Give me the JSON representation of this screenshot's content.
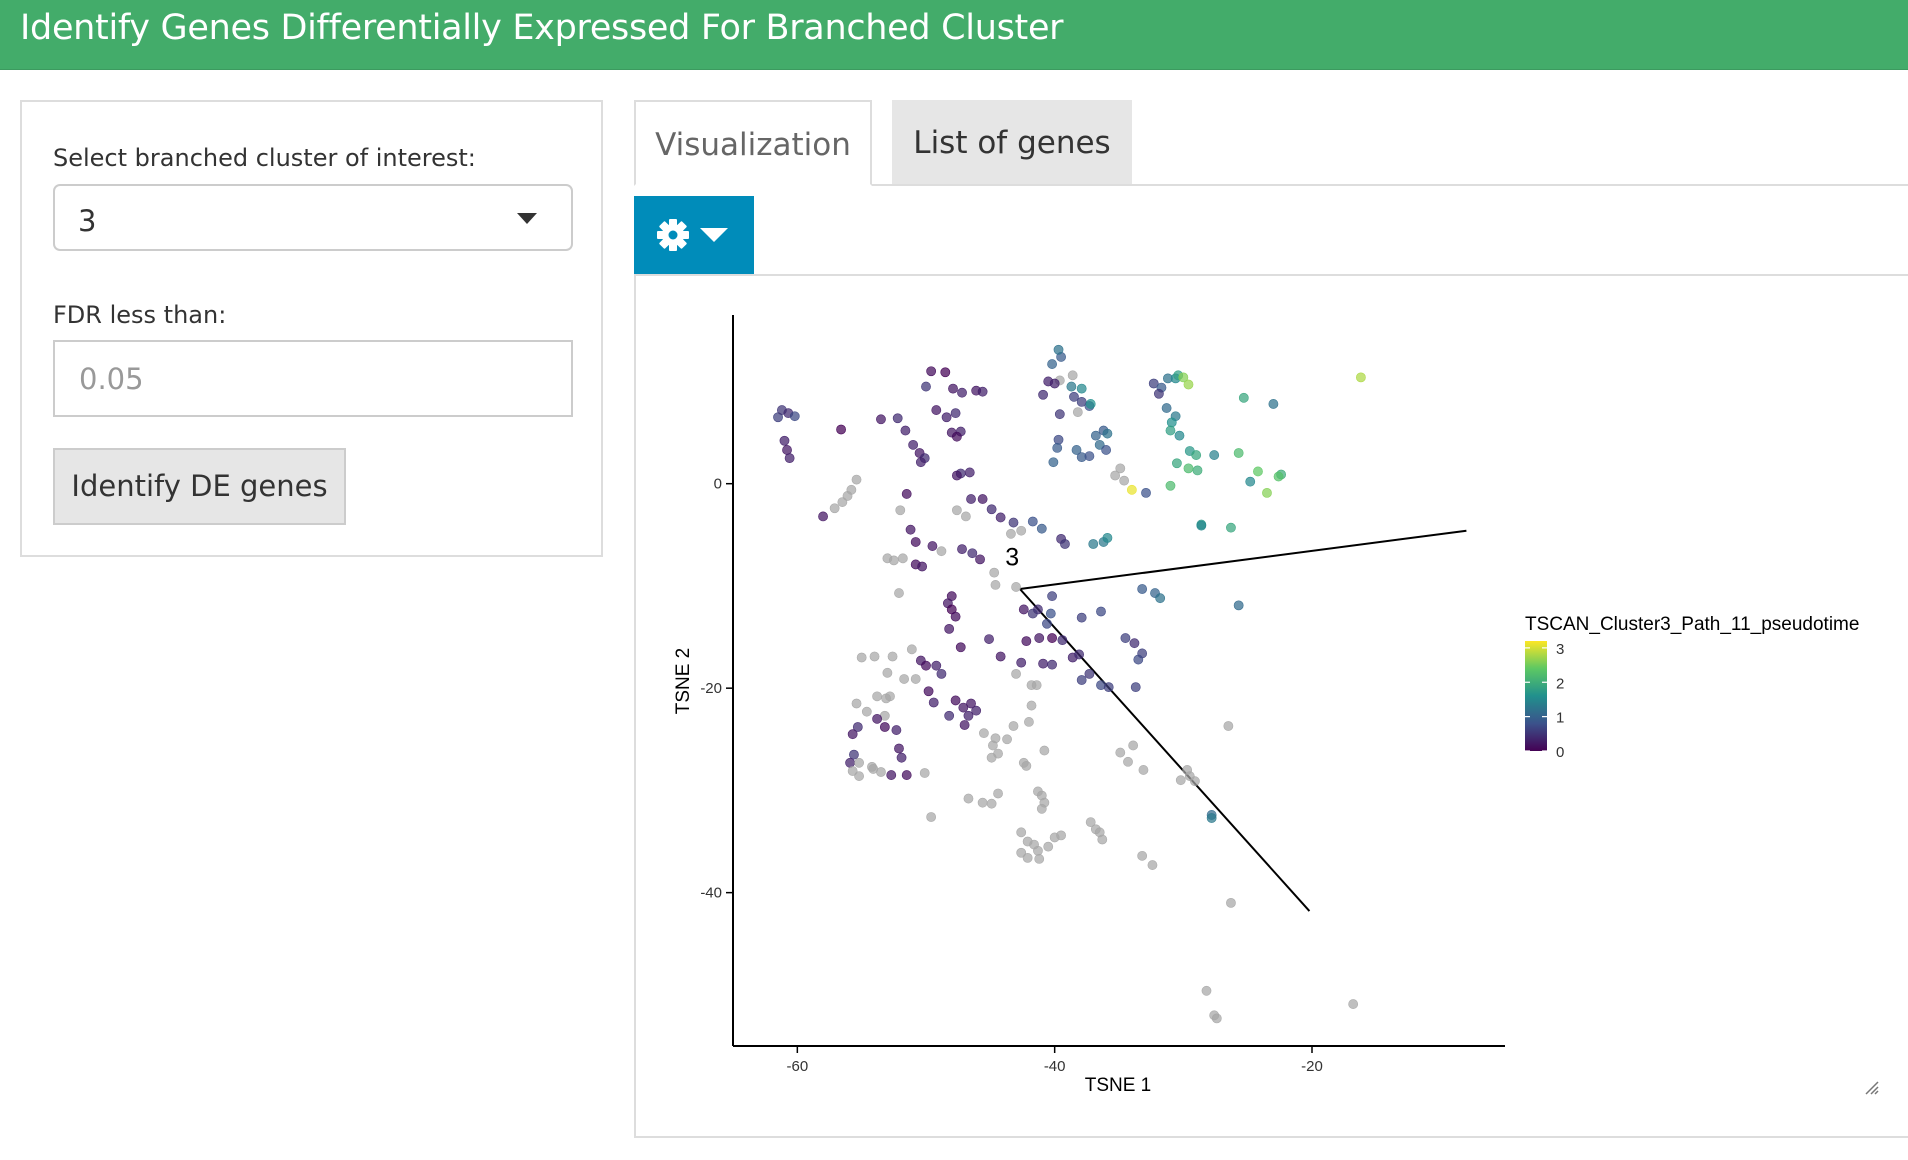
{
  "header": {
    "title": "Identify Genes Differentially Expressed For Branched Cluster"
  },
  "sidebar": {
    "cluster_label": "Select branched cluster of interest:",
    "cluster_value": "3",
    "fdr_label": "FDR less than:",
    "fdr_placeholder": "0.05",
    "button_label": "Identify DE genes"
  },
  "tabs": [
    {
      "label": "Visualization",
      "active": true
    },
    {
      "label": "List of genes",
      "active": false
    }
  ],
  "toolbar": {
    "icon": "gear-icon",
    "caret": "caret-down-icon",
    "color": "#008cba"
  },
  "colors": {
    "header": "#43ac6a",
    "accent": "#008cba",
    "na_points": "#a6a6a6"
  },
  "chart_data": {
    "type": "scatter",
    "title": "",
    "xlabel": "TSNE 1",
    "ylabel": "TSNE 2",
    "xlim": [
      -65,
      -5
    ],
    "ylim": [
      -55,
      16.5
    ],
    "xticks": [
      -60,
      -40,
      -20
    ],
    "yticks": [
      0,
      -20,
      -40
    ],
    "grid": false,
    "legend": {
      "title": "TSCAN_Cluster3_Path_11_pseudotime",
      "placement": "right",
      "ticks": [
        3,
        2,
        1,
        0
      ],
      "range": [
        0,
        3.2
      ],
      "colormap": "viridis"
    },
    "cluster_label": {
      "text": "3",
      "x": -43.3,
      "y": -8
    },
    "trajectory": [
      {
        "x": -20.2,
        "y": -41.8
      },
      {
        "x": -42.7,
        "y": -10.3
      },
      {
        "x": -8,
        "y": -4.6
      }
    ],
    "points": [
      [
        -61.5,
        6.5,
        0.6
      ],
      [
        -61.2,
        7.2,
        0.5
      ],
      [
        -60.7,
        6.9,
        0.4
      ],
      [
        -60.2,
        6.6,
        0.7
      ],
      [
        -61.0,
        4.2,
        0.3
      ],
      [
        -60.8,
        3.3,
        0.2
      ],
      [
        -60.6,
        2.5,
        0.3
      ],
      [
        -56.6,
        5.3,
        0.0
      ],
      [
        -53.5,
        6.3,
        0.2
      ],
      [
        -52.2,
        6.4,
        0.4
      ],
      [
        -51.6,
        5.2,
        0.3
      ],
      [
        -49.6,
        11.0,
        0.1
      ],
      [
        -48.5,
        10.9,
        0.0
      ],
      [
        -47.9,
        9.3,
        0.2
      ],
      [
        -47.2,
        8.9,
        0.3
      ],
      [
        -46.1,
        9.1,
        0.2
      ],
      [
        -45.6,
        9.0,
        0.3
      ],
      [
        -50.0,
        9.5,
        0.5
      ],
      [
        -49.2,
        7.2,
        0.2
      ],
      [
        -48.4,
        6.5,
        0.3
      ],
      [
        -47.7,
        6.9,
        0.4
      ],
      [
        -48.0,
        5.0,
        0.2
      ],
      [
        -47.3,
        5.1,
        0.3
      ],
      [
        -47.6,
        4.6,
        0.1
      ],
      [
        -51.0,
        3.8,
        0.3
      ],
      [
        -50.5,
        3.0,
        0.2
      ],
      [
        -50.1,
        2.5,
        0.4
      ],
      [
        -50.4,
        2.1,
        0.3
      ],
      [
        -47.3,
        1.0,
        0.4
      ],
      [
        -46.6,
        1.1,
        0.3
      ],
      [
        -47.6,
        0.8,
        0.2
      ],
      [
        -55.4,
        0.4,
        null
      ],
      [
        -55.8,
        -0.6,
        null
      ],
      [
        -56.1,
        -1.2,
        null
      ],
      [
        -56.5,
        -1.8,
        null
      ],
      [
        -57.1,
        -2.4,
        null
      ],
      [
        -58.0,
        -3.2,
        0.2
      ],
      [
        -51.5,
        -1.0,
        0.1
      ],
      [
        -52.0,
        -2.6,
        null
      ],
      [
        -51.2,
        -4.5,
        0.2
      ],
      [
        -46.5,
        -1.5,
        0.3
      ],
      [
        -45.6,
        -1.5,
        0.2
      ],
      [
        -44.9,
        -2.5,
        0.4
      ],
      [
        -44.2,
        -3.3,
        0.3
      ],
      [
        -43.2,
        -3.8,
        0.5
      ],
      [
        -41.7,
        -3.7,
        0.8
      ],
      [
        -41.0,
        -4.4,
        0.9
      ],
      [
        -42.6,
        -4.6,
        null
      ],
      [
        -43.4,
        -4.9,
        null
      ],
      [
        -46.9,
        -3.2,
        null
      ],
      [
        -47.6,
        -2.6,
        null
      ],
      [
        -50.8,
        -5.7,
        0.1
      ],
      [
        -49.5,
        -6.1,
        0.2
      ],
      [
        -48.8,
        -6.6,
        null
      ],
      [
        -47.2,
        -6.4,
        0.3
      ],
      [
        -46.4,
        -6.8,
        0.4
      ],
      [
        -45.8,
        -7.4,
        0.2
      ],
      [
        -50.8,
        -7.9,
        0.1
      ],
      [
        -51.8,
        -7.3,
        null
      ],
      [
        -53.0,
        -7.3,
        null
      ],
      [
        -52.5,
        -7.5,
        null
      ],
      [
        -50.3,
        -8.1,
        0.2
      ],
      [
        -52.1,
        -10.7,
        null
      ],
      [
        -38.6,
        10.6,
        null
      ],
      [
        -39.6,
        10.1,
        null
      ],
      [
        -40.0,
        9.8,
        0.3
      ],
      [
        -40.5,
        10.0,
        0.3
      ],
      [
        -40.9,
        8.7,
        0.4
      ],
      [
        -38.5,
        8.5,
        0.6
      ],
      [
        -37.9,
        8.0,
        0.6
      ],
      [
        -37.3,
        7.6,
        0.8
      ],
      [
        -38.2,
        7.0,
        null
      ],
      [
        -39.6,
        6.8,
        0.5
      ],
      [
        -39.7,
        4.3,
        0.7
      ],
      [
        -39.8,
        3.5,
        0.9
      ],
      [
        -40.1,
        2.1,
        1.0
      ],
      [
        -38.3,
        3.3,
        1.0
      ],
      [
        -37.9,
        2.6,
        0.9
      ],
      [
        -37.3,
        2.7,
        0.8
      ],
      [
        -36.8,
        4.7,
        1.0
      ],
      [
        -36.5,
        3.8,
        1.1
      ],
      [
        -36.0,
        3.3,
        0.8
      ],
      [
        -36.2,
        5.2,
        0.9
      ],
      [
        -35.9,
        4.9,
        1.2
      ],
      [
        -37.0,
        -5.9,
        1.3
      ],
      [
        -36.2,
        -5.7,
        1.3
      ],
      [
        -35.9,
        -5.3,
        1.5
      ],
      [
        -39.5,
        -5.4,
        0.4
      ],
      [
        -39.2,
        -5.9,
        0.5
      ],
      [
        -40.2,
        -11.0,
        0.6
      ],
      [
        -41.3,
        -12.3,
        0.4
      ],
      [
        -40.3,
        -12.7,
        0.8
      ],
      [
        -40.6,
        -13.7,
        0.7
      ],
      [
        -41.7,
        -12.7,
        0.5
      ],
      [
        -39.5,
        12.4,
        0.9
      ],
      [
        -39.7,
        13.1,
        1.2
      ],
      [
        -40.2,
        11.7,
        1.0
      ],
      [
        -38.7,
        9.5,
        1.3
      ],
      [
        -37.9,
        9.3,
        1.5
      ],
      [
        -37.2,
        7.8,
        1.6
      ],
      [
        -34.9,
        1.5,
        null
      ],
      [
        -35.3,
        0.8,
        null
      ],
      [
        -34.6,
        0.3,
        null
      ],
      [
        -34.0,
        -0.6,
        3.1
      ],
      [
        -32.9,
        -0.9,
        0.8
      ],
      [
        -31.0,
        -0.2,
        2.2
      ],
      [
        -32.3,
        9.8,
        0.6
      ],
      [
        -31.7,
        9.4,
        0.9
      ],
      [
        -31.2,
        10.3,
        1.2
      ],
      [
        -30.6,
        10.3,
        1.5
      ],
      [
        -30.4,
        10.6,
        1.8
      ],
      [
        -30.0,
        10.4,
        2.6
      ],
      [
        -29.6,
        9.7,
        2.7
      ],
      [
        -31.9,
        8.8,
        0.5
      ],
      [
        -31.3,
        7.4,
        1.1
      ],
      [
        -30.6,
        6.6,
        1.3
      ],
      [
        -30.9,
        6.0,
        1.6
      ],
      [
        -31.0,
        5.2,
        1.8
      ],
      [
        -30.3,
        4.7,
        1.5
      ],
      [
        -29.5,
        3.2,
        1.7
      ],
      [
        -29.0,
        2.8,
        1.9
      ],
      [
        -28.9,
        1.3,
        2.0
      ],
      [
        -29.6,
        1.5,
        2.2
      ],
      [
        -30.5,
        2.0,
        1.9
      ],
      [
        -28.6,
        -4.0,
        1.7
      ],
      [
        -27.6,
        2.8,
        1.4
      ],
      [
        -25.7,
        3.0,
        2.2
      ],
      [
        -24.8,
        0.2,
        1.5
      ],
      [
        -24.2,
        1.2,
        2.4
      ],
      [
        -22.4,
        0.9,
        2.0
      ],
      [
        -22.6,
        0.7,
        2.3
      ],
      [
        -23.5,
        -0.9,
        2.6
      ],
      [
        -25.3,
        8.4,
        1.9
      ],
      [
        -23.0,
        7.8,
        1.2
      ],
      [
        -16.2,
        10.4,
        2.8
      ],
      [
        -26.3,
        -4.3,
        1.9
      ],
      [
        -28.6,
        -4.1,
        1.5
      ],
      [
        -32.2,
        -10.7,
        1.0
      ],
      [
        -31.8,
        -11.2,
        1.2
      ],
      [
        -33.2,
        -10.3,
        0.9
      ],
      [
        -34.5,
        -15.1,
        0.6
      ],
      [
        -33.8,
        -15.6,
        0.4
      ],
      [
        -33.2,
        -16.6,
        0.6
      ],
      [
        -33.5,
        -17.2,
        0.7
      ],
      [
        -36.4,
        -12.5,
        0.7
      ],
      [
        -37.9,
        -13.1,
        0.6
      ],
      [
        -25.7,
        -11.9,
        1.1
      ],
      [
        -48.0,
        -11.0,
        0.1
      ],
      [
        -48.3,
        -11.7,
        0.2
      ],
      [
        -48.0,
        -12.3,
        0.0
      ],
      [
        -47.7,
        -13.0,
        0.1
      ],
      [
        -48.2,
        -14.2,
        0.2
      ],
      [
        -47.3,
        -16.0,
        0.1
      ],
      [
        -45.1,
        -15.2,
        0.3
      ],
      [
        -42.2,
        -15.4,
        0.1
      ],
      [
        -41.2,
        -15.1,
        0.2
      ],
      [
        -40.2,
        -15.1,
        0.0
      ],
      [
        -39.4,
        -15.3,
        0.4
      ],
      [
        -44.2,
        -16.9,
        0.2
      ],
      [
        -42.6,
        -17.5,
        0.3
      ],
      [
        -40.9,
        -17.6,
        0.3
      ],
      [
        -40.2,
        -17.7,
        0.4
      ],
      [
        -38.6,
        -17.0,
        0.3
      ],
      [
        -38.1,
        -16.7,
        0.4
      ],
      [
        -37.3,
        -18.6,
        0.5
      ],
      [
        -36.4,
        -19.7,
        0.7
      ],
      [
        -35.8,
        -19.9,
        0.6
      ],
      [
        -33.7,
        -19.9,
        0.6
      ],
      [
        -37.9,
        -19.2,
        0.6
      ],
      [
        -43.0,
        -18.6,
        null
      ],
      [
        -41.8,
        -19.7,
        null
      ],
      [
        -41.4,
        -19.7,
        null
      ],
      [
        -50.4,
        -17.3,
        0.2
      ],
      [
        -50.0,
        -17.8,
        0.1
      ],
      [
        -49.2,
        -17.8,
        0.3
      ],
      [
        -48.8,
        -18.6,
        0.4
      ],
      [
        -51.1,
        -16.2,
        null
      ],
      [
        -52.6,
        -16.9,
        null
      ],
      [
        -53.0,
        -18.5,
        null
      ],
      [
        -54.0,
        -16.9,
        null
      ],
      [
        -55.0,
        -17.0,
        null
      ],
      [
        -51.7,
        -19.1,
        null
      ],
      [
        -50.8,
        -19.1,
        null
      ],
      [
        -49.4,
        -21.4,
        0.3
      ],
      [
        -49.8,
        -20.3,
        0.1
      ],
      [
        -53.1,
        -21.0,
        null
      ],
      [
        -53.8,
        -20.8,
        null
      ],
      [
        -52.8,
        -20.8,
        null
      ],
      [
        -53.2,
        -22.7,
        null
      ],
      [
        -54.6,
        -22.3,
        null
      ],
      [
        -55.4,
        -21.5,
        null
      ],
      [
        -53.8,
        -23.0,
        0.2
      ],
      [
        -53.2,
        -23.8,
        0.1
      ],
      [
        -52.3,
        -24.1,
        0.3
      ],
      [
        -52.1,
        -25.9,
        0.2
      ],
      [
        -51.9,
        -26.8,
        0.3
      ],
      [
        -55.3,
        -23.8,
        0.4
      ],
      [
        -55.7,
        -24.5,
        0.2
      ],
      [
        -55.6,
        -26.5,
        0.5
      ],
      [
        -55.9,
        -27.3,
        0.3
      ],
      [
        -54.2,
        -27.7,
        null
      ],
      [
        -55.2,
        -27.3,
        null
      ],
      [
        -55.7,
        -28.1,
        null
      ],
      [
        -55.2,
        -28.6,
        null
      ],
      [
        -54.1,
        -27.9,
        null
      ],
      [
        -53.5,
        -28.2,
        null
      ],
      [
        -52.7,
        -28.5,
        0.2
      ],
      [
        -51.5,
        -28.5,
        0.1
      ],
      [
        -50.1,
        -28.3,
        null
      ],
      [
        -47.7,
        -21.2,
        0.1
      ],
      [
        -47.1,
        -21.9,
        0.2
      ],
      [
        -46.7,
        -22.7,
        0.3
      ],
      [
        -46.5,
        -21.5,
        0.2
      ],
      [
        -46.1,
        -22.2,
        0.3
      ],
      [
        -48.2,
        -22.7,
        0.4
      ],
      [
        -47.0,
        -23.6,
        0.2
      ],
      [
        -45.5,
        -24.4,
        null
      ],
      [
        -44.6,
        -24.9,
        null
      ],
      [
        -43.7,
        -25.0,
        null
      ],
      [
        -44.8,
        -25.6,
        null
      ],
      [
        -44.4,
        -26.4,
        null
      ],
      [
        -44.9,
        -26.8,
        null
      ],
      [
        -41.8,
        -21.7,
        null
      ],
      [
        -42.0,
        -23.3,
        null
      ],
      [
        -43.2,
        -23.7,
        null
      ],
      [
        -40.8,
        -26.1,
        null
      ],
      [
        -42.2,
        -27.6,
        null
      ],
      [
        -42.4,
        -27.3,
        null
      ],
      [
        -41.3,
        -30.1,
        null
      ],
      [
        -41.0,
        -30.5,
        null
      ],
      [
        -40.8,
        -31.2,
        null
      ],
      [
        -41.0,
        -31.8,
        null
      ],
      [
        -44.4,
        -30.3,
        null
      ],
      [
        -44.9,
        -31.3,
        null
      ],
      [
        -45.6,
        -31.2,
        null
      ],
      [
        -46.7,
        -30.8,
        null
      ],
      [
        -49.6,
        -32.6,
        null
      ],
      [
        -42.6,
        -34.1,
        null
      ],
      [
        -42.1,
        -35.0,
        null
      ],
      [
        -41.6,
        -35.3,
        null
      ],
      [
        -41.3,
        -35.9,
        null
      ],
      [
        -42.6,
        -36.1,
        null
      ],
      [
        -42.1,
        -36.6,
        null
      ],
      [
        -41.2,
        -36.7,
        null
      ],
      [
        -40.5,
        -35.5,
        null
      ],
      [
        -40.0,
        -34.6,
        null
      ],
      [
        -39.5,
        -34.4,
        null
      ],
      [
        -37.2,
        -33.1,
        null
      ],
      [
        -36.8,
        -33.8,
        null
      ],
      [
        -36.5,
        -34.1,
        null
      ],
      [
        -36.3,
        -34.8,
        null
      ],
      [
        -33.2,
        -36.4,
        null
      ],
      [
        -32.4,
        -37.3,
        null
      ],
      [
        -34.9,
        -26.3,
        null
      ],
      [
        -33.9,
        -25.6,
        null
      ],
      [
        -34.3,
        -27.2,
        null
      ],
      [
        -33.1,
        -28.0,
        null
      ],
      [
        -29.7,
        -28.0,
        null
      ],
      [
        -29.5,
        -28.6,
        null
      ],
      [
        -29.1,
        -29.1,
        null
      ],
      [
        -30.2,
        -29.0,
        null
      ],
      [
        -27.8,
        -32.4,
        1.1
      ],
      [
        -27.8,
        -32.7,
        1.3
      ],
      [
        -26.5,
        -23.7,
        null
      ],
      [
        -26.3,
        -41.0,
        null
      ],
      [
        -28.2,
        -49.6,
        null
      ],
      [
        -27.6,
        -52.0,
        null
      ],
      [
        -27.4,
        -52.3,
        null
      ],
      [
        -16.8,
        -50.9,
        null
      ],
      [
        -44.7,
        -8.7,
        null
      ],
      [
        -44.6,
        -9.9,
        null
      ],
      [
        -43.0,
        -10.1,
        null
      ],
      [
        -42.4,
        -12.3,
        0.2
      ]
    ]
  }
}
